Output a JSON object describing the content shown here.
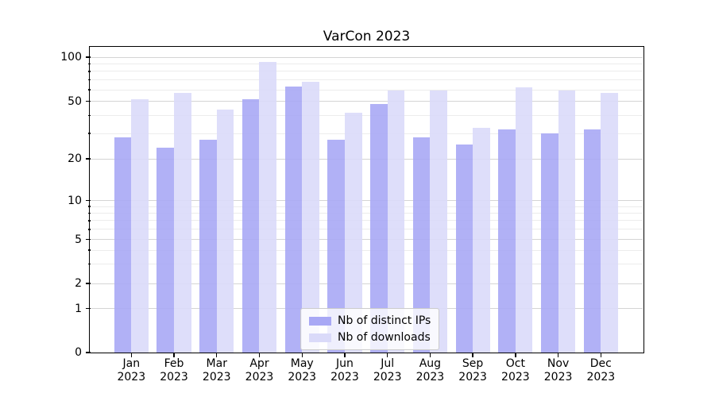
{
  "title": "VarCon 2023",
  "legend": {
    "items": [
      {
        "label": "Nb of distinct IPs"
      },
      {
        "label": "Nb of downloads"
      }
    ]
  },
  "chart_data": {
    "type": "bar",
    "title": "VarCon 2023",
    "categories": [
      "Jan 2023",
      "Feb 2023",
      "Mar 2023",
      "Apr 2023",
      "May 2023",
      "Jun 2023",
      "Jul 2023",
      "Aug 2023",
      "Sep 2023",
      "Oct 2023",
      "Nov 2023",
      "Dec 2023"
    ],
    "x_tick_top_lines": [
      "Jan",
      "Feb",
      "Mar",
      "Apr",
      "May",
      "Jun",
      "Jul",
      "Aug",
      "Sep",
      "Oct",
      "Nov",
      "Dec"
    ],
    "x_tick_bottom_line": "2023",
    "series": [
      {
        "name": "Nb of distinct IPs",
        "color": "#a8a8f5",
        "values": [
          28,
          24,
          27,
          52,
          63,
          27,
          48,
          28,
          25,
          32,
          30,
          32
        ]
      },
      {
        "name": "Nb of downloads",
        "color": "#dadaf9",
        "values": [
          52,
          57,
          44,
          93,
          68,
          42,
          59,
          59,
          33,
          62,
          59,
          57
        ]
      }
    ],
    "yscale": "symlog",
    "ylim": [
      0,
      120
    ],
    "yticks": [
      0,
      1,
      2,
      5,
      10,
      20,
      50,
      100
    ],
    "ytick_labels": [
      "0",
      "1",
      "2",
      "5",
      "10",
      "20",
      "50",
      "100"
    ],
    "minor_yticks": [
      3,
      4,
      6,
      7,
      8,
      9,
      30,
      40,
      60,
      70,
      80,
      90
    ],
    "grid": true,
    "legend_position": "lower center",
    "xlabel": "",
    "ylabel": ""
  }
}
